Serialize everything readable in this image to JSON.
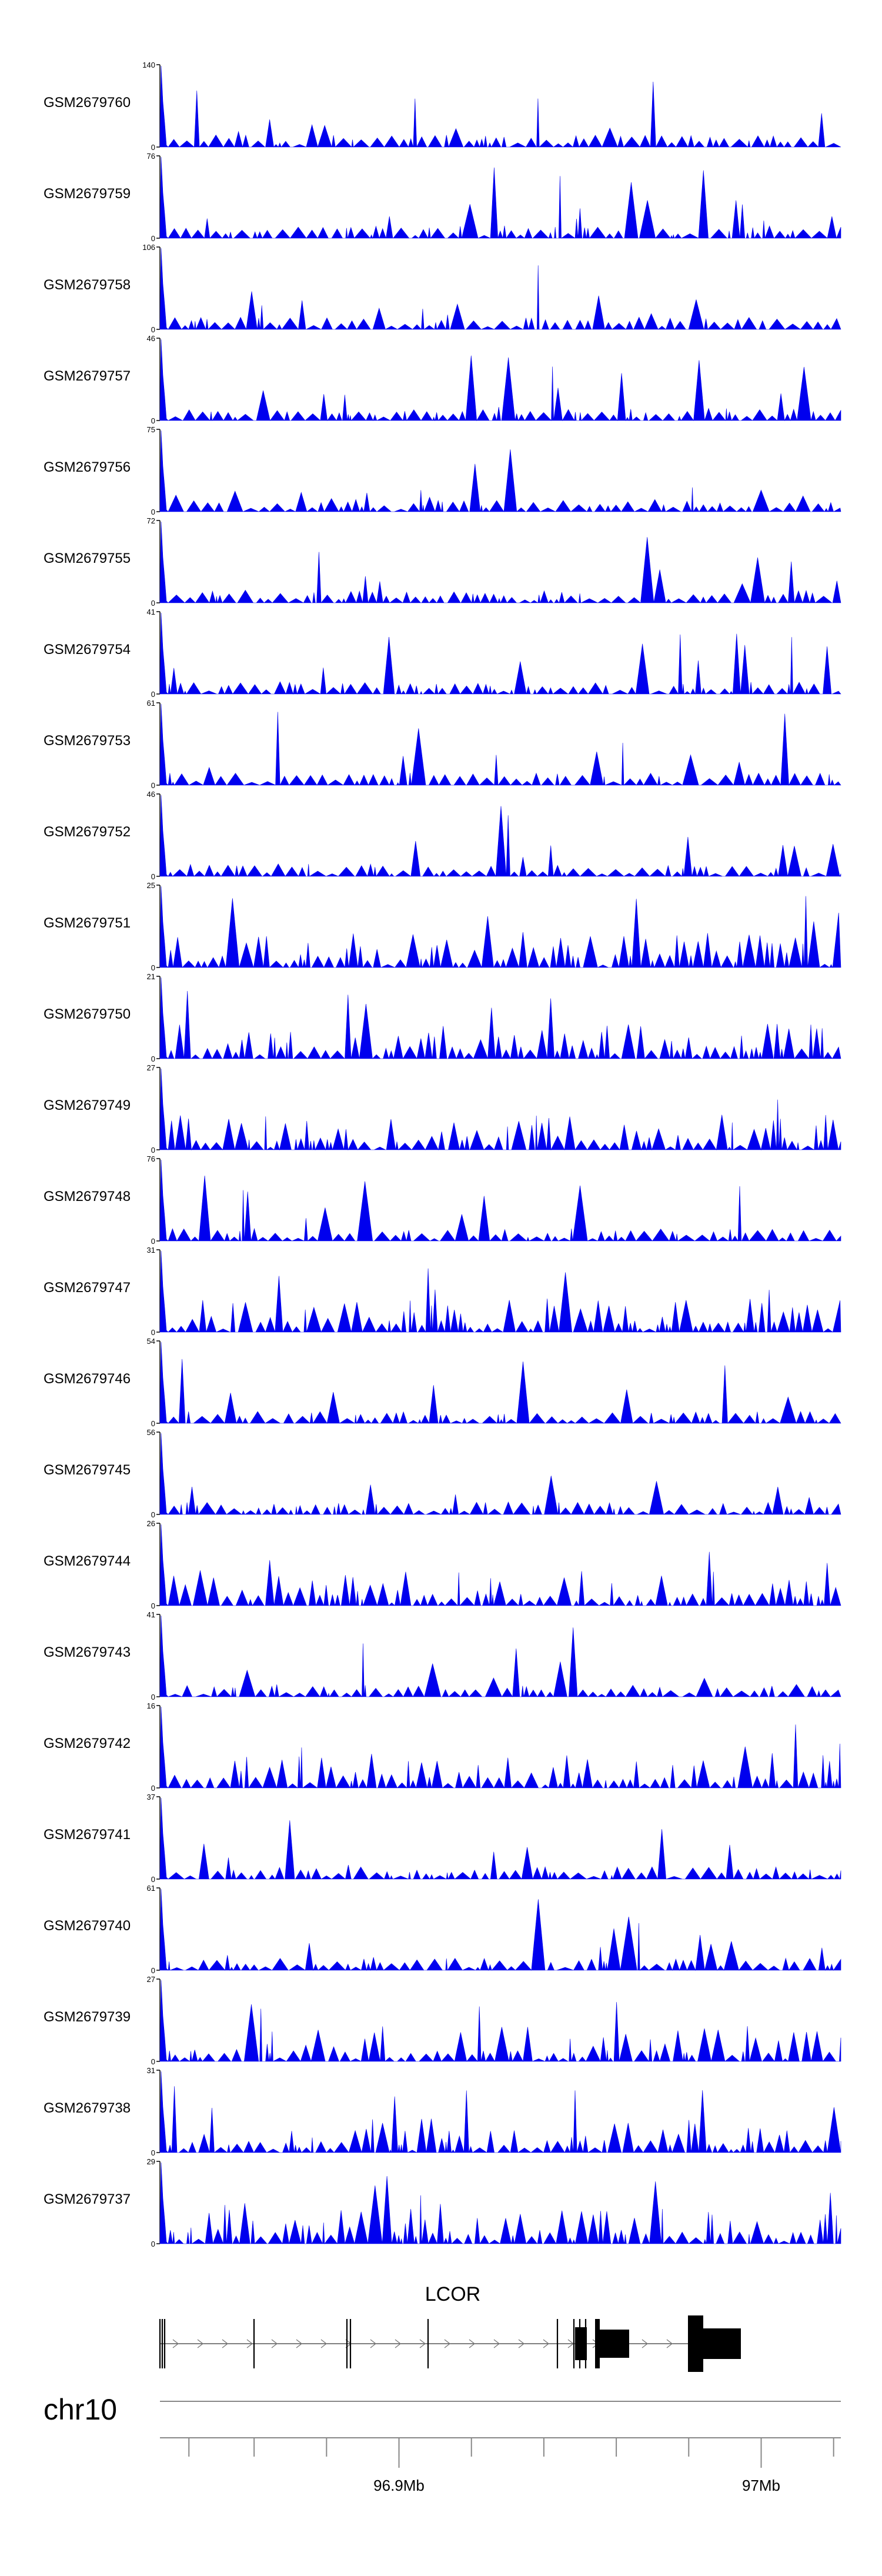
{
  "colors": {
    "track": "#0000ee",
    "axis": "#000000",
    "gene": "#000000"
  },
  "chart_data": {
    "type": "area",
    "chromosome": "chr10",
    "gene": "LCOR",
    "xrange_bp": [
      96824000,
      97012000
    ],
    "ruler": {
      "ticks_bp": [
        96832000,
        96850000,
        96870000,
        96890000,
        96910000,
        96930000,
        96950000,
        96970000,
        96990000,
        97010000
      ],
      "labels": [
        {
          "position_bp": 96890000,
          "text": "96.9Mb"
        },
        {
          "position_bp": 96990000,
          "text": "97Mb"
        }
      ]
    },
    "tracks": [
      {
        "name": "GSM2679760",
        "ymax": 140,
        "ymin_label": "0"
      },
      {
        "name": "GSM2679759",
        "ymax": 76,
        "ymin_label": "0"
      },
      {
        "name": "GSM2679758",
        "ymax": 106,
        "ymin_label": "0"
      },
      {
        "name": "GSM2679757",
        "ymax": 46,
        "ymin_label": "0"
      },
      {
        "name": "GSM2679756",
        "ymax": 75,
        "ymin_label": "0"
      },
      {
        "name": "GSM2679755",
        "ymax": 72,
        "ymin_label": "0"
      },
      {
        "name": "GSM2679754",
        "ymax": 41,
        "ymin_label": "0"
      },
      {
        "name": "GSM2679753",
        "ymax": 61,
        "ymin_label": "0"
      },
      {
        "name": "GSM2679752",
        "ymax": 46,
        "ymin_label": "0"
      },
      {
        "name": "GSM2679751",
        "ymax": 25,
        "ymin_label": "0"
      },
      {
        "name": "GSM2679750",
        "ymax": 21,
        "ymin_label": "0"
      },
      {
        "name": "GSM2679749",
        "ymax": 27,
        "ymin_label": "0"
      },
      {
        "name": "GSM2679748",
        "ymax": 76,
        "ymin_label": "0"
      },
      {
        "name": "GSM2679747",
        "ymax": 31,
        "ymin_label": "0"
      },
      {
        "name": "GSM2679746",
        "ymax": 54,
        "ymin_label": "0"
      },
      {
        "name": "GSM2679745",
        "ymax": 56,
        "ymin_label": "0"
      },
      {
        "name": "GSM2679744",
        "ymax": 26,
        "ymin_label": "0"
      },
      {
        "name": "GSM2679743",
        "ymax": 41,
        "ymin_label": "0"
      },
      {
        "name": "GSM2679742",
        "ymax": 16,
        "ymin_label": "0"
      },
      {
        "name": "GSM2679741",
        "ymax": 37,
        "ymin_label": "0"
      },
      {
        "name": "GSM2679740",
        "ymax": 61,
        "ymin_label": "0"
      },
      {
        "name": "GSM2679739",
        "ymax": 27,
        "ymin_label": "0"
      },
      {
        "name": "GSM2679738",
        "ymax": 31,
        "ymin_label": "0"
      },
      {
        "name": "GSM2679737",
        "ymax": 29,
        "ymin_label": "0"
      }
    ]
  }
}
